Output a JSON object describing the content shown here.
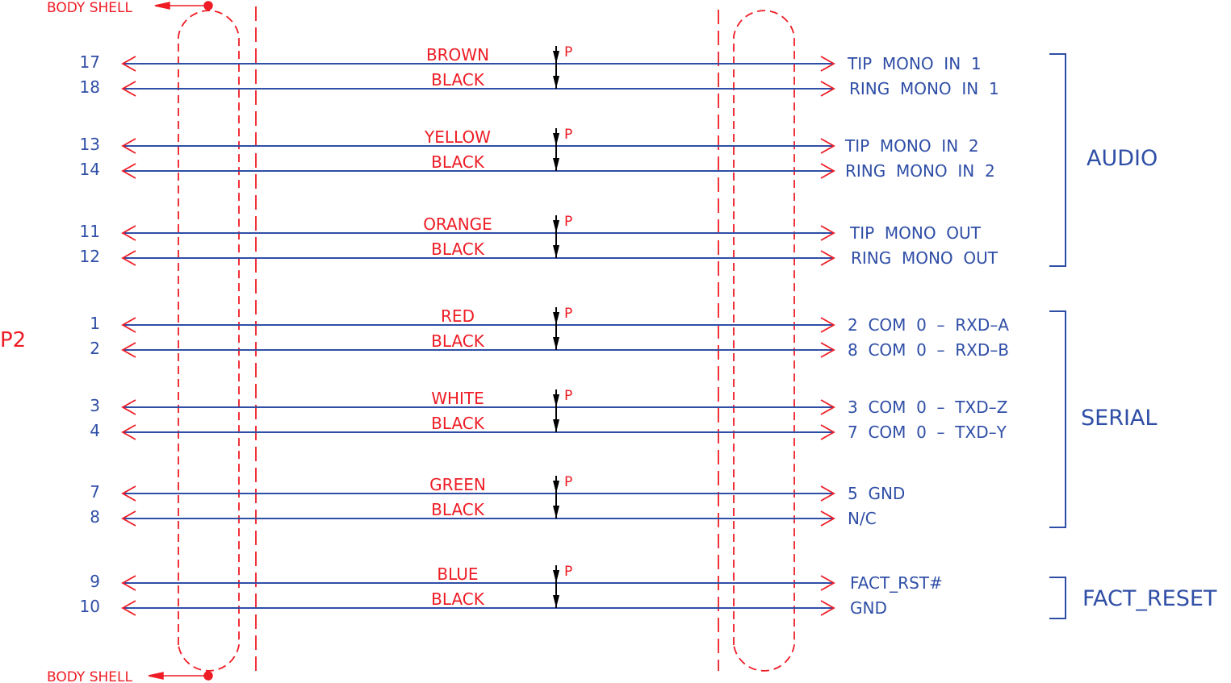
{
  "colors": {
    "wire": "#2f4ea6",
    "annotation": "#ee1c25",
    "twist_marker": "#000000"
  },
  "connector": {
    "label": "P2",
    "body_shell_top": "BODY SHELL",
    "body_shell_bottom": "BODY SHELL"
  },
  "pairs": [
    {
      "pins": [
        "17",
        "18"
      ],
      "colors": [
        "BROWN",
        "BLACK"
      ],
      "twist_label": "P",
      "signals": [
        "TIP  MONO  IN  1",
        "RING  MONO  IN  1"
      ]
    },
    {
      "pins": [
        "13",
        "14"
      ],
      "colors": [
        "YELLOW",
        "BLACK"
      ],
      "twist_label": "P",
      "signals": [
        "TIP  MONO  IN  2",
        "RING  MONO  IN  2"
      ]
    },
    {
      "pins": [
        "11",
        "12"
      ],
      "colors": [
        "ORANGE",
        "BLACK"
      ],
      "twist_label": "P",
      "signals": [
        "TIP  MONO  OUT",
        "RING  MONO  OUT"
      ]
    },
    {
      "pins": [
        "1",
        "2"
      ],
      "colors": [
        "RED",
        "BLACK"
      ],
      "twist_label": "P",
      "signals": [
        "2  COM  0  –  RXD–A",
        "8  COM  0  –  RXD–B"
      ]
    },
    {
      "pins": [
        "3",
        "4"
      ],
      "colors": [
        "WHITE",
        "BLACK"
      ],
      "twist_label": "P",
      "signals": [
        "3  COM  0  –  TXD–Z",
        "7  COM  0  –  TXD–Y"
      ]
    },
    {
      "pins": [
        "7",
        "8"
      ],
      "colors": [
        "GREEN",
        "BLACK"
      ],
      "twist_label": "P",
      "signals": [
        "5  GND",
        "N/C"
      ]
    },
    {
      "pins": [
        "9",
        "10"
      ],
      "colors": [
        "BLUE",
        "BLACK"
      ],
      "twist_label": "P",
      "signals": [
        "FACT_RST#",
        "GND"
      ]
    }
  ],
  "groups": [
    {
      "label": "AUDIO",
      "pair_range": [
        0,
        2
      ]
    },
    {
      "label": "SERIAL",
      "pair_range": [
        3,
        5
      ]
    },
    {
      "label": "FACT_RESET",
      "pair_range": [
        6,
        6
      ]
    }
  ]
}
